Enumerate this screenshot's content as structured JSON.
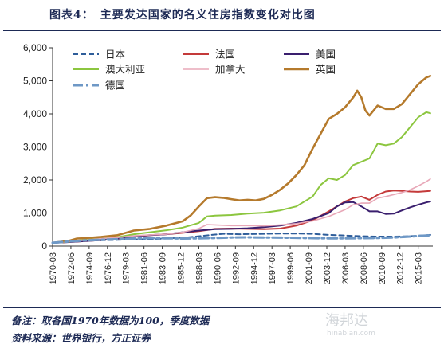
{
  "header": {
    "figure_label": "图表4：",
    "title": "主要发达国家的名义住房指数变化对比图"
  },
  "footer": {
    "note": "备注：取各国1970年数据为100，季度数据",
    "source": "资料来源：世界银行，方正证券"
  },
  "watermark": {
    "main": "海邦达",
    "sub": "hinabian.com"
  },
  "chart_data": {
    "type": "line",
    "title": "",
    "xlabel": "",
    "ylabel": "",
    "ylim": [
      0,
      6000
    ],
    "yticks": [
      "0",
      "1,000",
      "2,000",
      "3,000",
      "4,000",
      "5,000",
      "6,000"
    ],
    "xticks": [
      "1970-03",
      "1972-06",
      "1974-09",
      "1976-12",
      "1979-03",
      "1981-06",
      "1983-09",
      "1985-12",
      "1988-03",
      "1990-06",
      "1992-09",
      "1994-12",
      "1997-03",
      "1999-06",
      "2001-09",
      "2003-12",
      "2006-03",
      "2008-06",
      "2010-09",
      "2012-12",
      "2015-03"
    ],
    "grid": false,
    "legend_position": "top",
    "series": [
      {
        "name": "日本",
        "color": "#2e5d9a",
        "style": "dashed",
        "points": [
          [
            1970,
            100
          ],
          [
            1972,
            140
          ],
          [
            1974,
            170
          ],
          [
            1976,
            175
          ],
          [
            1978,
            185
          ],
          [
            1980,
            200
          ],
          [
            1983,
            220
          ],
          [
            1986,
            250
          ],
          [
            1988,
            300
          ],
          [
            1990,
            350
          ],
          [
            1991,
            370
          ],
          [
            1993,
            360
          ],
          [
            1996,
            370
          ],
          [
            1998,
            380
          ],
          [
            2000,
            380
          ],
          [
            2002,
            370
          ],
          [
            2004,
            340
          ],
          [
            2006,
            320
          ],
          [
            2008,
            300
          ],
          [
            2010,
            290
          ],
          [
            2012,
            290
          ],
          [
            2014,
            300
          ],
          [
            2016,
            330
          ],
          [
            2016.5,
            340
          ]
        ]
      },
      {
        "name": "法国",
        "color": "#c43a3a",
        "style": "solid",
        "points": [
          [
            1970,
            100
          ],
          [
            1972,
            120
          ],
          [
            1974,
            150
          ],
          [
            1976,
            180
          ],
          [
            1978,
            220
          ],
          [
            1980,
            280
          ],
          [
            1982,
            330
          ],
          [
            1984,
            360
          ],
          [
            1986,
            400
          ],
          [
            1988,
            450
          ],
          [
            1990,
            520
          ],
          [
            1992,
            530
          ],
          [
            1994,
            520
          ],
          [
            1996,
            510
          ],
          [
            1998,
            530
          ],
          [
            2000,
            620
          ],
          [
            2002,
            780
          ],
          [
            2004,
            1050
          ],
          [
            2006,
            1350
          ],
          [
            2007,
            1450
          ],
          [
            2008,
            1500
          ],
          [
            2009,
            1400
          ],
          [
            2010,
            1550
          ],
          [
            2011,
            1650
          ],
          [
            2012,
            1680
          ],
          [
            2013,
            1670
          ],
          [
            2014,
            1650
          ],
          [
            2015,
            1640
          ],
          [
            2016,
            1660
          ],
          [
            2016.5,
            1670
          ]
        ]
      },
      {
        "name": "美国",
        "color": "#3a1f6e",
        "style": "solid",
        "points": [
          [
            1970,
            100
          ],
          [
            1972,
            120
          ],
          [
            1974,
            150
          ],
          [
            1976,
            180
          ],
          [
            1978,
            230
          ],
          [
            1980,
            300
          ],
          [
            1982,
            330
          ],
          [
            1984,
            360
          ],
          [
            1986,
            420
          ],
          [
            1988,
            470
          ],
          [
            1990,
            510
          ],
          [
            1992,
            520
          ],
          [
            1994,
            540
          ],
          [
            1996,
            570
          ],
          [
            1998,
            620
          ],
          [
            2000,
            700
          ],
          [
            2002,
            820
          ],
          [
            2004,
            1000
          ],
          [
            2005,
            1200
          ],
          [
            2006,
            1320
          ],
          [
            2007,
            1330
          ],
          [
            2008,
            1200
          ],
          [
            2009,
            1050
          ],
          [
            2010,
            1050
          ],
          [
            2011,
            970
          ],
          [
            2012,
            980
          ],
          [
            2013,
            1080
          ],
          [
            2014,
            1170
          ],
          [
            2015,
            1250
          ],
          [
            2016,
            1320
          ],
          [
            2016.5,
            1350
          ]
        ]
      },
      {
        "name": "澳大利亚",
        "color": "#8cc63f",
        "style": "solid",
        "points": [
          [
            1970,
            100
          ],
          [
            1972,
            130
          ],
          [
            1974,
            190
          ],
          [
            1976,
            230
          ],
          [
            1978,
            270
          ],
          [
            1980,
            360
          ],
          [
            1982,
            420
          ],
          [
            1984,
            480
          ],
          [
            1986,
            560
          ],
          [
            1988,
            700
          ],
          [
            1989,
            900
          ],
          [
            1990,
            920
          ],
          [
            1992,
            940
          ],
          [
            1994,
            980
          ],
          [
            1996,
            1010
          ],
          [
            1998,
            1080
          ],
          [
            2000,
            1200
          ],
          [
            2002,
            1500
          ],
          [
            2003,
            1850
          ],
          [
            2004,
            2050
          ],
          [
            2005,
            2000
          ],
          [
            2006,
            2150
          ],
          [
            2007,
            2450
          ],
          [
            2008,
            2550
          ],
          [
            2009,
            2650
          ],
          [
            2010,
            3100
          ],
          [
            2011,
            3050
          ],
          [
            2012,
            3100
          ],
          [
            2013,
            3300
          ],
          [
            2014,
            3600
          ],
          [
            2015,
            3900
          ],
          [
            2016,
            4050
          ],
          [
            2016.5,
            4020
          ]
        ]
      },
      {
        "name": "加拿大",
        "color": "#e8a8b8",
        "style": "solid",
        "points": [
          [
            1970,
            100
          ],
          [
            1972,
            130
          ],
          [
            1974,
            180
          ],
          [
            1976,
            230
          ],
          [
            1978,
            260
          ],
          [
            1980,
            310
          ],
          [
            1982,
            340
          ],
          [
            1984,
            360
          ],
          [
            1986,
            420
          ],
          [
            1988,
            530
          ],
          [
            1989,
            650
          ],
          [
            1990,
            640
          ],
          [
            1992,
            620
          ],
          [
            1994,
            620
          ],
          [
            1996,
            610
          ],
          [
            1998,
            640
          ],
          [
            2000,
            680
          ],
          [
            2002,
            760
          ],
          [
            2004,
            900
          ],
          [
            2006,
            1100
          ],
          [
            2007,
            1250
          ],
          [
            2008,
            1300
          ],
          [
            2009,
            1300
          ],
          [
            2010,
            1450
          ],
          [
            2011,
            1500
          ],
          [
            2012,
            1560
          ],
          [
            2013,
            1620
          ],
          [
            2014,
            1700
          ],
          [
            2015,
            1820
          ],
          [
            2016,
            1950
          ],
          [
            2016.5,
            2030
          ]
        ]
      },
      {
        "name": "英国",
        "color": "#b57a2c",
        "style": "solid",
        "points": [
          [
            1970,
            100
          ],
          [
            1972,
            160
          ],
          [
            1973,
            230
          ],
          [
            1974,
            240
          ],
          [
            1976,
            280
          ],
          [
            1978,
            330
          ],
          [
            1980,
            470
          ],
          [
            1982,
            520
          ],
          [
            1984,
            620
          ],
          [
            1986,
            750
          ],
          [
            1987,
            930
          ],
          [
            1988,
            1200
          ],
          [
            1989,
            1450
          ],
          [
            1990,
            1480
          ],
          [
            1991,
            1460
          ],
          [
            1992,
            1420
          ],
          [
            1993,
            1380
          ],
          [
            1994,
            1400
          ],
          [
            1995,
            1380
          ],
          [
            1996,
            1430
          ],
          [
            1997,
            1550
          ],
          [
            1998,
            1700
          ],
          [
            1999,
            1900
          ],
          [
            2000,
            2150
          ],
          [
            2001,
            2450
          ],
          [
            2002,
            2950
          ],
          [
            2003,
            3400
          ],
          [
            2004,
            3850
          ],
          [
            2005,
            4000
          ],
          [
            2006,
            4200
          ],
          [
            2007,
            4500
          ],
          [
            2007.5,
            4700
          ],
          [
            2008,
            4500
          ],
          [
            2008.5,
            4100
          ],
          [
            2009,
            3950
          ],
          [
            2009.5,
            4100
          ],
          [
            2010,
            4250
          ],
          [
            2011,
            4150
          ],
          [
            2012,
            4150
          ],
          [
            2013,
            4300
          ],
          [
            2014,
            4600
          ],
          [
            2015,
            4900
          ],
          [
            2016,
            5100
          ],
          [
            2016.5,
            5150
          ]
        ]
      },
      {
        "name": "德国",
        "color": "#6e98c6",
        "style": "dashdot",
        "points": [
          [
            1970,
            100
          ],
          [
            1972,
            140
          ],
          [
            1974,
            170
          ],
          [
            1976,
            190
          ],
          [
            1978,
            210
          ],
          [
            1980,
            230
          ],
          [
            1982,
            240
          ],
          [
            1984,
            235
          ],
          [
            1986,
            230
          ],
          [
            1988,
            235
          ],
          [
            1990,
            245
          ],
          [
            1992,
            260
          ],
          [
            1994,
            265
          ],
          [
            1996,
            260
          ],
          [
            1998,
            255
          ],
          [
            2000,
            250
          ],
          [
            2002,
            240
          ],
          [
            2004,
            235
          ],
          [
            2006,
            235
          ],
          [
            2008,
            240
          ],
          [
            2010,
            245
          ],
          [
            2012,
            260
          ],
          [
            2014,
            290
          ],
          [
            2016,
            320
          ],
          [
            2016.5,
            330
          ]
        ]
      }
    ]
  }
}
